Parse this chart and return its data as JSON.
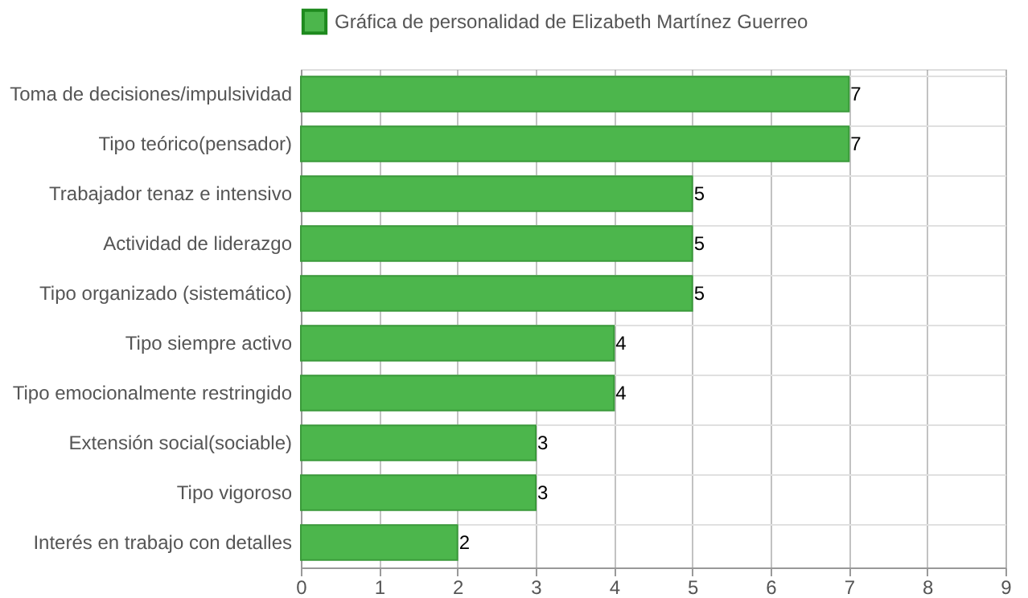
{
  "chart_data": {
    "type": "bar",
    "orientation": "horizontal",
    "categories": [
      "Toma de decisiones/impulsividad",
      "Tipo teórico(pensador)",
      "Trabajador tenaz e intensivo",
      "Actividad de liderazgo",
      "Tipo organizado (sistemático)",
      "Tipo siempre activo",
      "Tipo emocionalmente restringido",
      "Extensión social(sociable)",
      "Tipo vigoroso",
      "Interés en trabajo con detalles"
    ],
    "series": [
      {
        "name": "Gráfica de personalidad de Elizabeth Martínez Guerreo",
        "color": "#4cb64c",
        "values": [
          7,
          7,
          5,
          5,
          5,
          4,
          4,
          3,
          3,
          2
        ]
      }
    ],
    "xlim": [
      0,
      9
    ],
    "xticks": [
      0,
      1,
      2,
      3,
      4,
      5,
      6,
      7,
      8,
      9
    ],
    "grid": true,
    "legend": "top",
    "data_labels": true
  }
}
